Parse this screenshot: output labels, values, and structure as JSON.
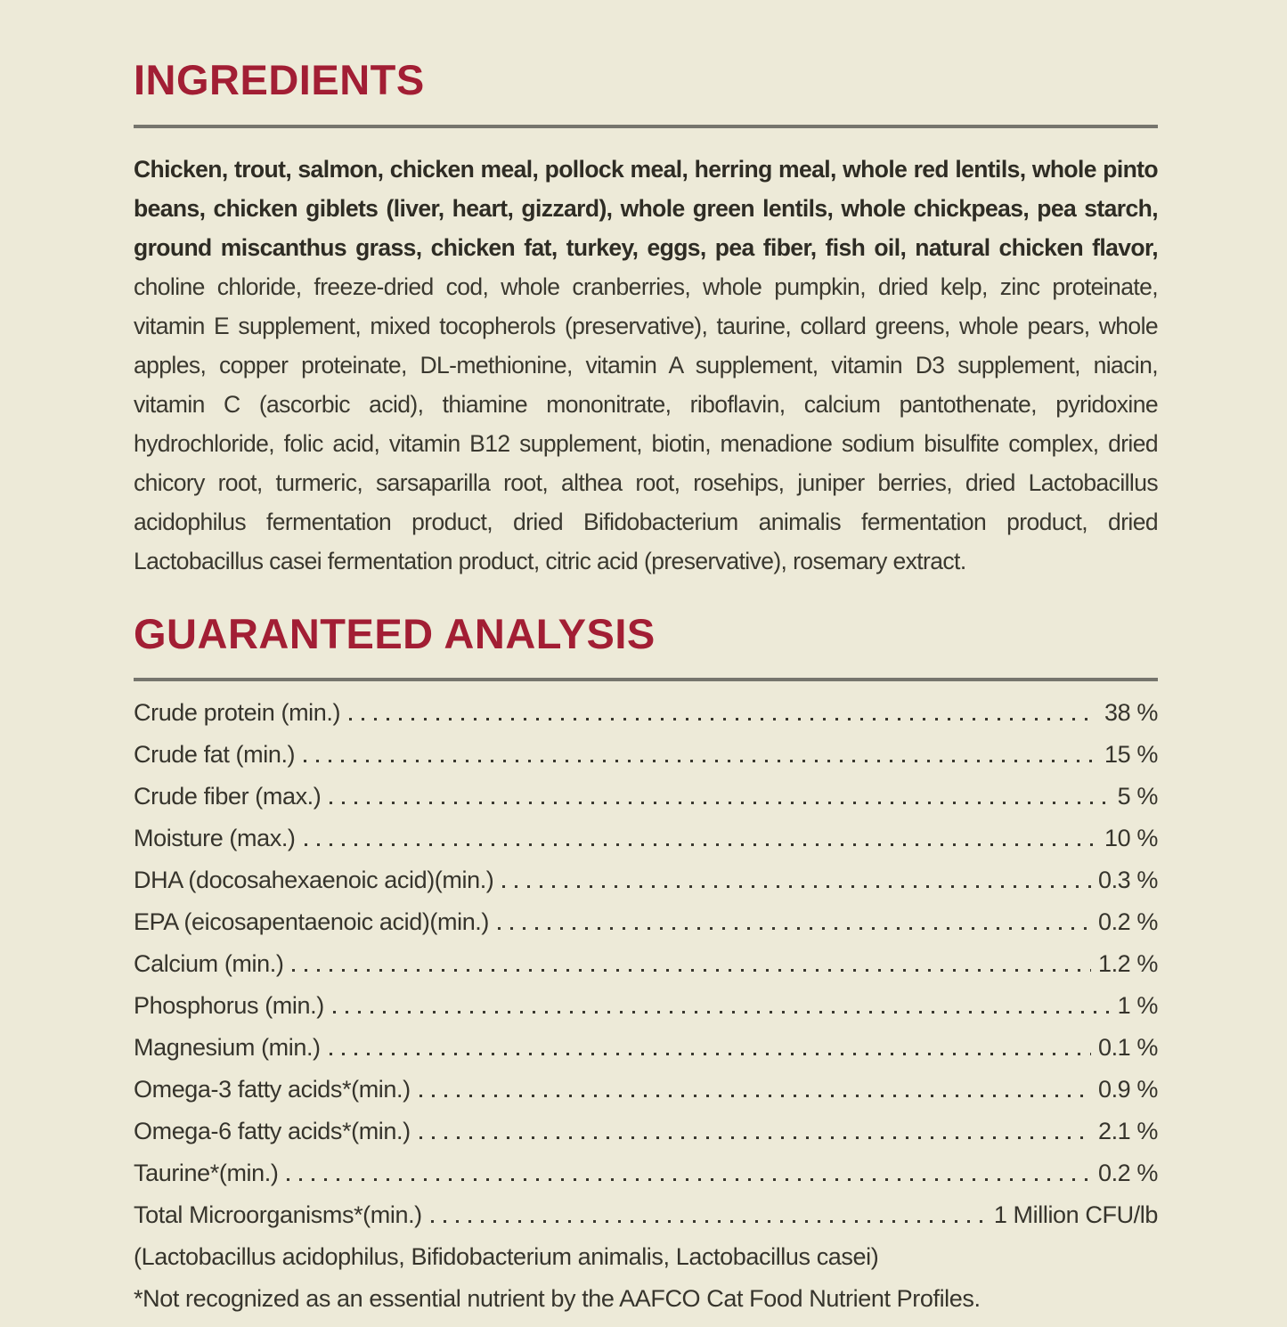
{
  "page": {
    "background_color": "#EDEAD8",
    "accent_color": "#A21E34",
    "rule_color": "#76756D",
    "text_color": "#3A382F"
  },
  "ingredients": {
    "title": "INGREDIENTS",
    "bold_text": "Chicken, trout, salmon, chicken meal, pollock meal, herring meal, whole red lentils, whole pinto beans, chicken giblets (liver, heart, gizzard), whole green lentils, whole chickpeas, pea starch, ground miscanthus grass, chicken fat, turkey, eggs, pea fiber, fish oil, natural chicken flavor,",
    "regular_text": " choline chloride, freeze-dried cod, whole cranberries, whole pumpkin, dried kelp, zinc proteinate, vitamin E supplement, mixed tocopherols (preservative), taurine, collard greens, whole pears, whole apples, copper proteinate, DL-methionine, vitamin A supplement, vitamin D3 supplement, niacin, vitamin C (ascorbic acid), thiamine mononitrate, riboflavin, calcium pantothenate, pyridoxine hydrochloride, folic acid, vitamin B12 supplement, biotin, menadione sodium bisulfite complex, dried chicory root, turmeric, sarsaparilla root, althea root, rosehips, juniper berries, dried Lactobacillus acidophilus fermentation product, dried Bifidobacterium animalis fermentation product, dried Lactobacillus casei fermentation product, citric acid (preservative), rosemary extract."
  },
  "guaranteed_analysis": {
    "title": "GUARANTEED ANALYSIS",
    "rows": [
      {
        "label": "Crude protein (min.)",
        "value": "38 %"
      },
      {
        "label": "Crude fat (min.)",
        "value": "15 %"
      },
      {
        "label": "Crude fiber (max.)",
        "value": "5 %"
      },
      {
        "label": "Moisture (max.)",
        "value": "10 %"
      },
      {
        "label": "DHA (docosahexaenoic acid)(min.)",
        "value": "0.3 %"
      },
      {
        "label": "EPA (eicosapentaenoic acid)(min.)",
        "value": "0.2 %"
      },
      {
        "label": "Calcium (min.)",
        "value": "1.2 %"
      },
      {
        "label": "Phosphorus (min.)",
        "value": "1 %"
      },
      {
        "label": "Magnesium (min.)",
        "value": "0.1 %"
      },
      {
        "label": "Omega-3 fatty acids*(min.)",
        "value": "0.9 %"
      },
      {
        "label": "Omega-6 fatty acids*(min.)",
        "value": "2.1 %"
      },
      {
        "label": "Taurine*(min.)",
        "value": "0.2 %"
      },
      {
        "label": "Total Microorganisms*(min.)",
        "value": "1 Million CFU/lb"
      }
    ],
    "species_note": "(Lactobacillus acidophilus, Bifidobacterium animalis, Lactobacillus casei)",
    "footnote": "*Not recognized as an essential nutrient by the AAFCO Cat Food Nutrient Profiles."
  }
}
